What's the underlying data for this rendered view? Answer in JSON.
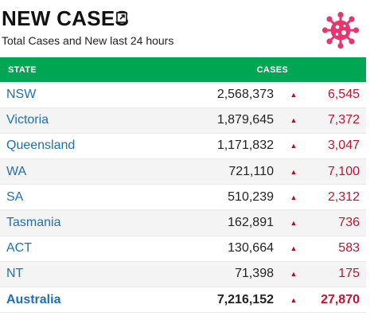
{
  "header": {
    "title": "NEW CASES",
    "subtitle": "Total Cases and New last 24 hours"
  },
  "table": {
    "headers": {
      "state": "STATE",
      "cases": "CASES"
    },
    "up_arrow": "▲",
    "rows": [
      {
        "state": "NSW",
        "cases": "2,568,373",
        "new": "6,545"
      },
      {
        "state": "Victoria",
        "cases": "1,879,645",
        "new": "7,372"
      },
      {
        "state": "Queensland",
        "cases": "1,171,832",
        "new": "3,047"
      },
      {
        "state": "WA",
        "cases": "721,110",
        "new": "7,100"
      },
      {
        "state": "SA",
        "cases": "510,239",
        "new": "2,312"
      },
      {
        "state": "Tasmania",
        "cases": "162,891",
        "new": "736"
      },
      {
        "state": "ACT",
        "cases": "130,664",
        "new": "583"
      },
      {
        "state": "NT",
        "cases": "71,398",
        "new": "175"
      }
    ],
    "total": {
      "state": "Australia",
      "cases": "7,216,152",
      "new": "27,870"
    }
  },
  "colors": {
    "header_bg": "#00a651",
    "state_link": "#1f6fb5",
    "increase": "#c8102e",
    "virus_icon": "#e8356d"
  },
  "icons": {
    "external_link": "external-link-icon",
    "virus": "virus-icon",
    "increase": "triangle-up-icon"
  }
}
